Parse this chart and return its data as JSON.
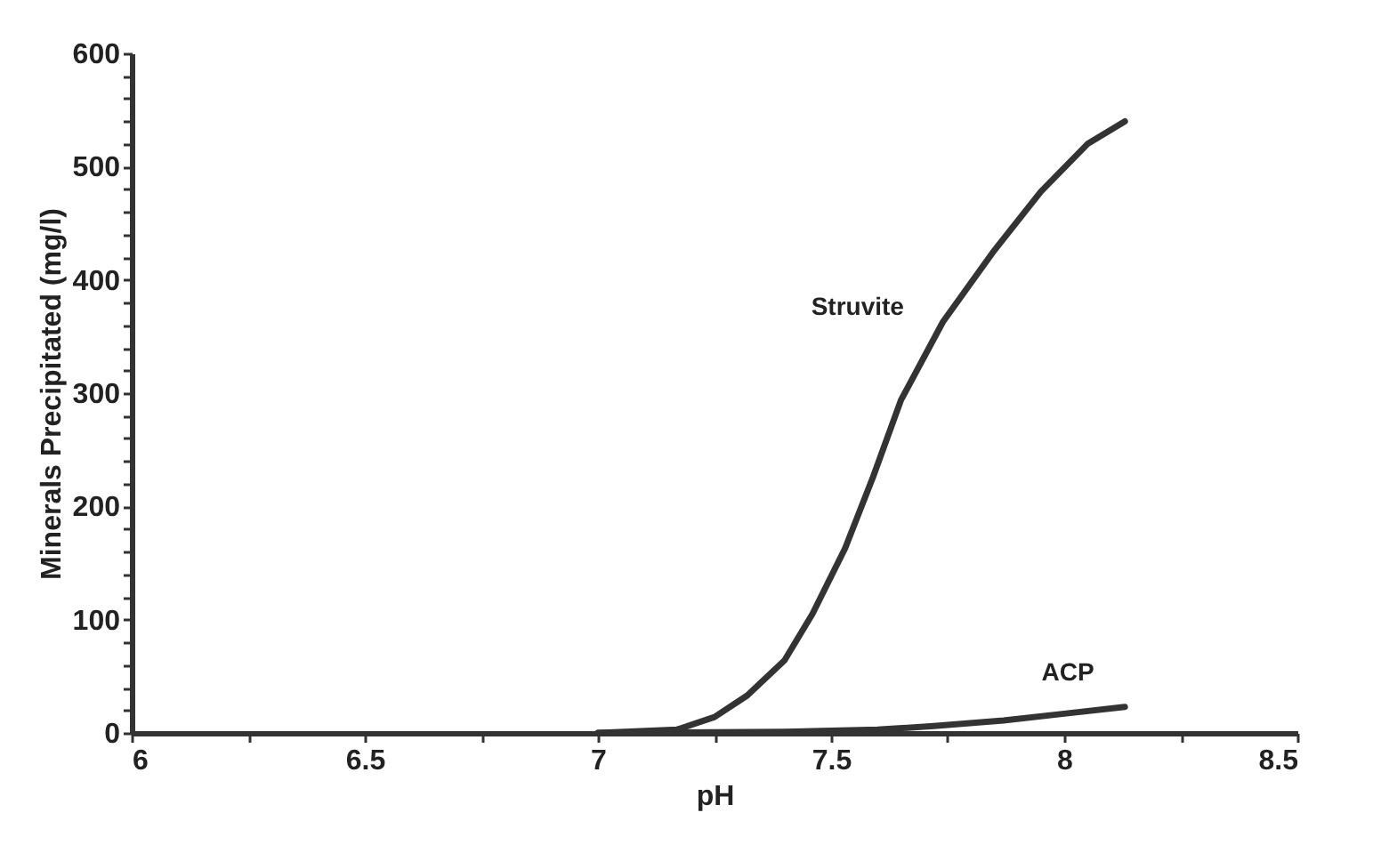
{
  "chart_data": {
    "type": "line",
    "xlabel": "pH",
    "ylabel": "Minerals Precipitated (mg/l)",
    "xlim": [
      6,
      8.5
    ],
    "ylim": [
      0,
      600
    ],
    "xticks": [
      6,
      {
        "value": 6.25,
        "label": null
      },
      6.5,
      {
        "value": 6.75,
        "label": null
      },
      7,
      {
        "value": 7.25,
        "label": null
      },
      7.5,
      {
        "value": 7.75,
        "label": null
      },
      8,
      {
        "value": 8.25,
        "label": null
      },
      8.5
    ],
    "yticks": [
      0,
      {
        "value": 20,
        "label": null
      },
      {
        "value": 40,
        "label": null
      },
      {
        "value": 60,
        "label": null
      },
      {
        "value": 80,
        "label": null
      },
      100,
      {
        "value": 120,
        "label": null
      },
      {
        "value": 140,
        "label": null
      },
      {
        "value": 160,
        "label": null
      },
      {
        "value": 180,
        "label": null
      },
      200,
      {
        "value": 220,
        "label": null
      },
      {
        "value": 240,
        "label": null
      },
      {
        "value": 260,
        "label": null
      },
      {
        "value": 280,
        "label": null
      },
      300,
      {
        "value": 320,
        "label": null
      },
      {
        "value": 340,
        "label": null
      },
      {
        "value": 360,
        "label": null
      },
      {
        "value": 380,
        "label": null
      },
      400,
      {
        "value": 420,
        "label": null
      },
      {
        "value": 440,
        "label": null
      },
      {
        "value": 460,
        "label": null
      },
      {
        "value": 480,
        "label": null
      },
      500,
      {
        "value": 520,
        "label": null
      },
      {
        "value": 540,
        "label": null
      },
      {
        "value": 560,
        "label": null
      },
      {
        "value": 580,
        "label": null
      },
      600
    ],
    "grid": false,
    "legend": false,
    "marker": "none",
    "line_style": "solid",
    "series": [
      {
        "name": "Struvite",
        "color": "#333333",
        "x": [
          7.0,
          7.17,
          7.25,
          7.32,
          7.4,
          7.46,
          7.53,
          7.59,
          7.65,
          7.74,
          7.85,
          7.95,
          8.05,
          8.13
        ],
        "values": [
          0,
          3,
          14,
          33,
          64,
          105,
          163,
          226,
          294,
          363,
          426,
          478,
          520,
          540
        ]
      },
      {
        "name": "ACP",
        "color": "#333333",
        "x": [
          7.0,
          7.4,
          7.6,
          7.72,
          7.87,
          8.0,
          8.13
        ],
        "values": [
          0,
          1,
          3,
          6,
          11,
          17,
          23
        ]
      }
    ]
  }
}
